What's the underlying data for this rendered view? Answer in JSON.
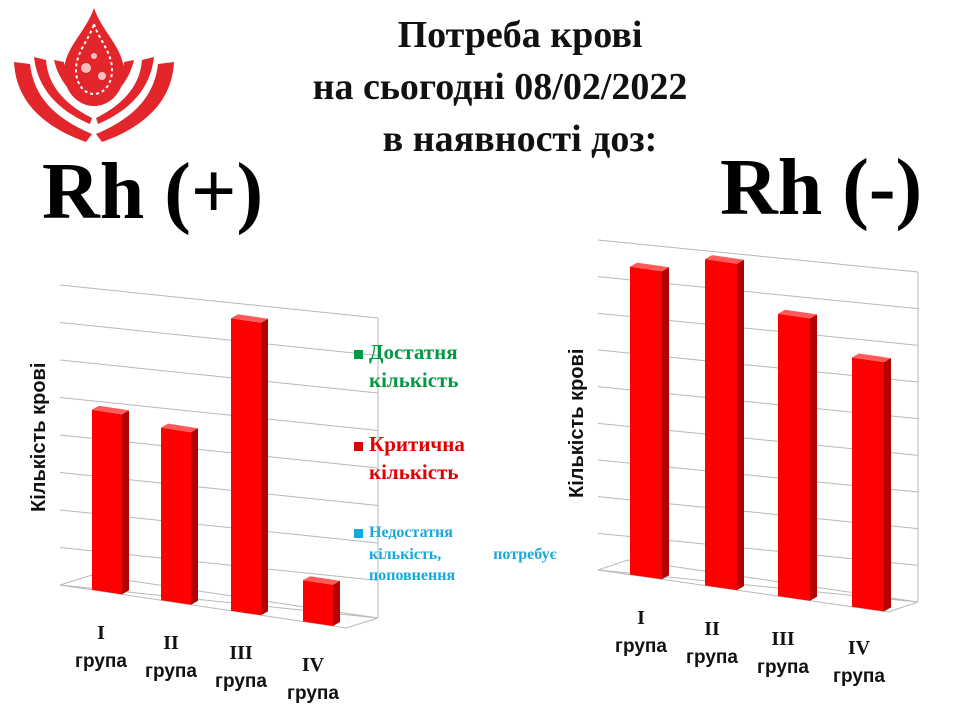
{
  "header": {
    "line1": "Потреба крові",
    "line2": "на сьогодні 08/02/2022",
    "line3": "в наявності доз:"
  },
  "colors": {
    "bar": "#ff0000",
    "bar_side": "#b30000",
    "bar_top": "#ff5a5a",
    "grid": "#b8b8b8",
    "legend_sufficient": "#009a44",
    "legend_critical": "#e00000",
    "legend_insufficient": "#17a9d9",
    "logo": "#e3262b"
  },
  "legend": [
    {
      "label_line1": "Достатня",
      "label_line2": "кількість",
      "color": "#009a44"
    },
    {
      "label_line1": "Критична",
      "label_line2": "кількість",
      "color": "#e00000"
    },
    {
      "label_line1": "Недостатня",
      "label_line2": "кількість,",
      "label_extra": "потребує",
      "label_line3": "поповнення",
      "color": "#17a9d9"
    }
  ],
  "chart_data": [
    {
      "type": "bar",
      "title": "Rh (+)",
      "ylabel": "Кількість крові",
      "categories": [
        "I група",
        "II група",
        "III група",
        "IV група"
      ],
      "category_roman": [
        "I",
        "II",
        "III",
        "IV"
      ],
      "category_word": [
        "група",
        "група",
        "група",
        "група"
      ],
      "values": [
        4.8,
        4.6,
        7.8,
        1.1
      ],
      "ylim": [
        0,
        8
      ],
      "grid": true,
      "legend_position": "right"
    },
    {
      "type": "bar",
      "title": "Rh (-)",
      "ylabel": "Кількість крові",
      "categories": [
        "I група",
        "II група",
        "III група",
        "IV група"
      ],
      "category_roman": [
        "I",
        "II",
        "III",
        "IV"
      ],
      "category_word": [
        "група",
        "група",
        "група",
        "група"
      ],
      "values": [
        8.4,
        8.9,
        7.7,
        6.8
      ],
      "ylim": [
        0,
        9
      ],
      "grid": true
    }
  ]
}
